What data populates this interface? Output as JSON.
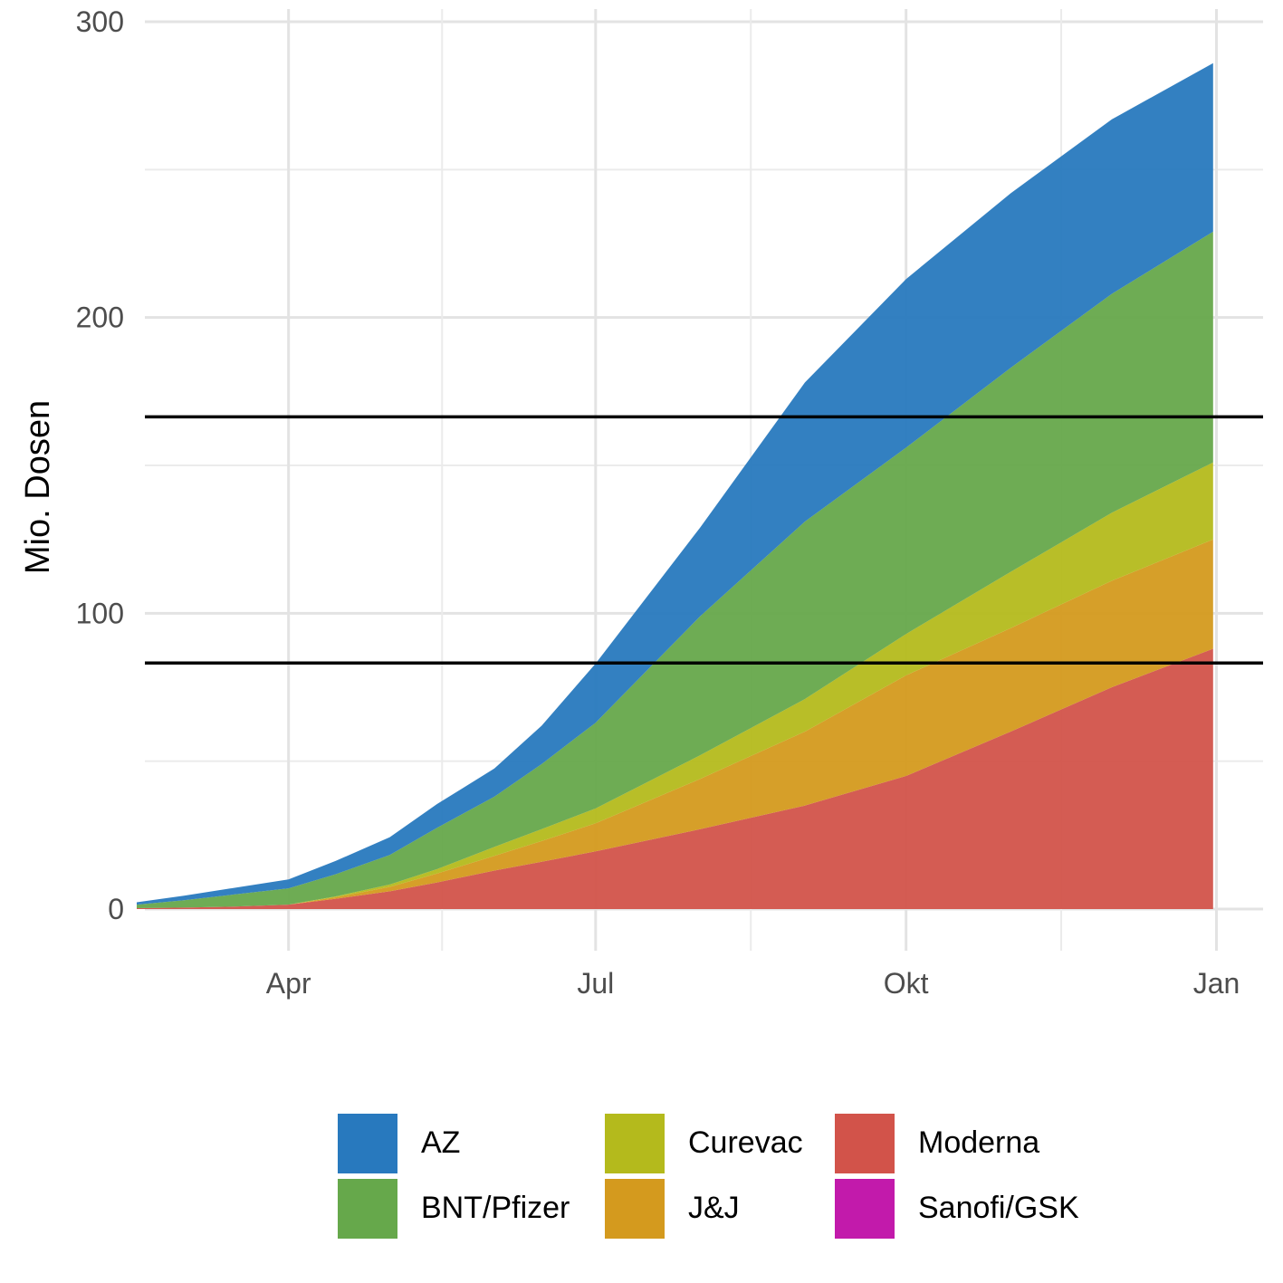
{
  "chart_data": {
    "type": "area",
    "stacked": true,
    "title": "",
    "xlabel": "",
    "ylabel": "Mio. Dosen",
    "ylim": [
      -10,
      300
    ],
    "y_ticks": [
      0,
      100,
      200,
      300
    ],
    "x_ticks": [
      "Apr",
      "Jul",
      "Okt",
      "Jan"
    ],
    "grid": true,
    "legend_position": "bottom",
    "x": [
      "Feb 15",
      "Mar 1",
      "Mar 15",
      "Apr 1",
      "Apr 15",
      "May 1",
      "May 15",
      "Jun 1",
      "Jun 15",
      "Jul 1",
      "Aug 1",
      "Sep 1",
      "Oct 1",
      "Nov 1",
      "Dec 1",
      "Dec 31"
    ],
    "x_days": [
      -45,
      -31,
      -17,
      0,
      14,
      30,
      44,
      61,
      75,
      91,
      122,
      153,
      183,
      214,
      244,
      274
    ],
    "series": [
      {
        "name": "Moderna",
        "color": "#d2534a",
        "values": [
          0.3,
          0.5,
          0.8,
          1.5,
          3.5,
          6,
          9,
          13,
          16,
          19.5,
          27,
          35,
          45,
          60,
          75,
          88
        ]
      },
      {
        "name": "Sanofi/GSK",
        "color": "#c21aab",
        "values": [
          0,
          0,
          0,
          0,
          0,
          0,
          0,
          0,
          0,
          0,
          0,
          0,
          0,
          0,
          0,
          0
        ]
      },
      {
        "name": "J&J",
        "color": "#d49a1e",
        "values": [
          0,
          0,
          0,
          0,
          0.5,
          1.5,
          3,
          5,
          7,
          9.5,
          17,
          25,
          34,
          35,
          36,
          37
        ]
      },
      {
        "name": "Curevac",
        "color": "#b4ba1c",
        "values": [
          0,
          0,
          0,
          0,
          0.3,
          0.8,
          1.5,
          3,
          4,
          5,
          8,
          11,
          14,
          19,
          23,
          26
        ]
      },
      {
        "name": "BNT/Pfizer",
        "color": "#66a84b",
        "values": [
          1.2,
          2.5,
          4,
          5.5,
          7.5,
          10,
          14,
          17,
          22,
          29,
          47,
          60,
          63,
          69,
          74,
          78
        ]
      },
      {
        "name": "AZ",
        "color": "#2879be",
        "values": [
          0.8,
          1.5,
          2.2,
          3,
          4.5,
          6,
          8,
          9.5,
          13,
          20,
          30,
          47,
          57,
          59,
          59,
          57
        ]
      }
    ],
    "reference_lines": [
      83.2,
      166.4
    ]
  },
  "legend": {
    "items": [
      {
        "label": "AZ",
        "color": "#2879be"
      },
      {
        "label": "BNT/Pfizer",
        "color": "#66a84b"
      },
      {
        "label": "Curevac",
        "color": "#b4ba1c"
      },
      {
        "label": "J&J",
        "color": "#d49a1e"
      },
      {
        "label": "Moderna",
        "color": "#d2534a"
      },
      {
        "label": "Sanofi/GSK",
        "color": "#c21aab"
      }
    ]
  }
}
